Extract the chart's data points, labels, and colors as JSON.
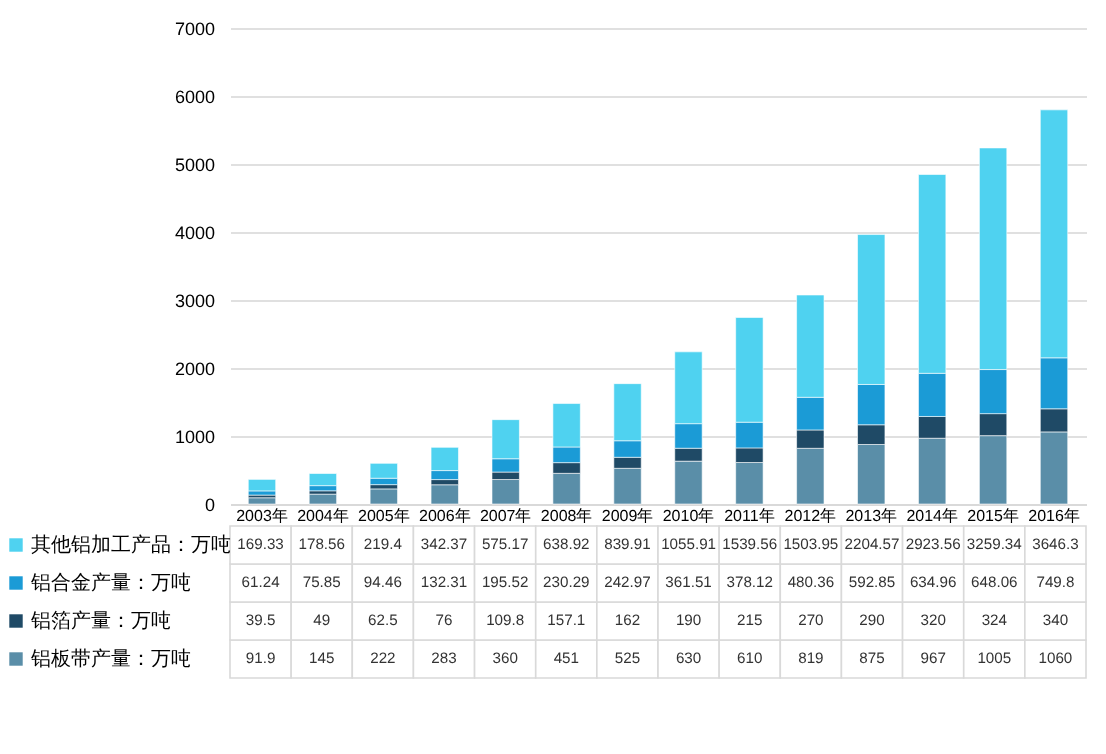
{
  "chart_data": {
    "type": "bar",
    "stacked": true,
    "categories": [
      "2003年",
      "2004年",
      "2005年",
      "2006年",
      "2007年",
      "2008年",
      "2009年",
      "2010年",
      "2011年",
      "2012年",
      "2013年",
      "2014年",
      "2015年",
      "2016年"
    ],
    "series": [
      {
        "name": "铝板带产量：万吨",
        "color": "#5a8ea8",
        "values": [
          91.9,
          145,
          222,
          283,
          360,
          451,
          525,
          630,
          610,
          819,
          875,
          967,
          1005,
          1060
        ],
        "value_labels": [
          "91.9",
          "145",
          "222",
          "283",
          "360",
          "451",
          "525",
          "630",
          "610",
          "819",
          "875",
          "967",
          "1005",
          "1060"
        ]
      },
      {
        "name": "铝箔产量：万吨",
        "color": "#1f4a66",
        "values": [
          39.5,
          49,
          62.5,
          76,
          109.8,
          157.1,
          162,
          190,
          215,
          270,
          290,
          320,
          324,
          340
        ],
        "value_labels": [
          "39.5",
          "49",
          "62.5",
          "76",
          "109.8",
          "157.1",
          "162",
          "190",
          "215",
          "270",
          "290",
          "320",
          "324",
          "340"
        ]
      },
      {
        "name": "铝合金产量：万吨",
        "color": "#1b9bd6",
        "values": [
          61.24,
          75.85,
          94.46,
          132.31,
          195.52,
          230.29,
          242.97,
          361.51,
          378.12,
          480.36,
          592.85,
          634.96,
          648.06,
          749.8
        ],
        "value_labels": [
          "61.24",
          "75.85",
          "94.46",
          "132.31",
          "195.52",
          "230.29",
          "242.97",
          "361.51",
          "378.12",
          "480.36",
          "592.85",
          "634.96",
          "648.06",
          "749.8"
        ]
      },
      {
        "name": "其他铝加工产品：万吨",
        "color": "#4fd2f0",
        "values": [
          169.33,
          178.56,
          219.4,
          342.37,
          575.17,
          638.92,
          839.91,
          1055.91,
          1539.56,
          1503.95,
          2204.57,
          2923.56,
          3259.34,
          3646.3
        ],
        "value_labels": [
          "169.33",
          "178.56",
          "219.4",
          "342.37",
          "575.17",
          "638.92",
          "839.91",
          "1055.91",
          "1539.56",
          "1503.95",
          "2204.57",
          "2923.56",
          "3259.34",
          "3646.3"
        ]
      }
    ],
    "ylim": [
      0,
      7000
    ],
    "yticks": [
      0,
      1000,
      2000,
      3000,
      4000,
      5000,
      6000,
      7000
    ],
    "grid": "y",
    "legend": "bottom"
  }
}
